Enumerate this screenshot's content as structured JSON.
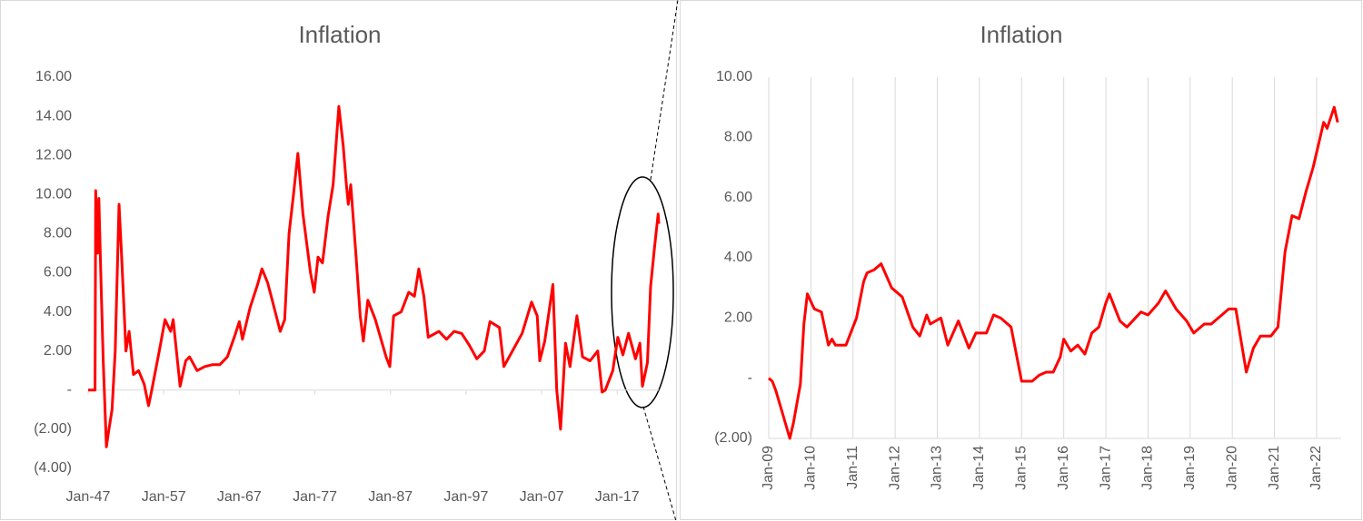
{
  "chart_data": [
    {
      "type": "line",
      "title": "Inflation",
      "x": [
        "1947-01",
        "1947-12",
        "1948-01",
        "1948-04",
        "1948-06",
        "1948-09",
        "1949-01",
        "1949-06",
        "1949-10",
        "1950-03",
        "1950-08",
        "1951-02",
        "1951-06",
        "1952-01",
        "1952-06",
        "1953-01",
        "1953-09",
        "1954-06",
        "1955-01",
        "1955-06",
        "1956-06",
        "1957-03",
        "1957-12",
        "1958-04",
        "1959-03",
        "1959-12",
        "1960-06",
        "1961-06",
        "1962-06",
        "1963-06",
        "1964-06",
        "1965-06",
        "1966-06",
        "1967-01",
        "1967-06",
        "1968-06",
        "1969-06",
        "1970-01",
        "1970-10",
        "1971-06",
        "1972-06",
        "1973-01",
        "1973-08",
        "1974-03",
        "1974-10",
        "1975-06",
        "1976-06",
        "1976-12",
        "1977-06",
        "1978-01",
        "1978-10",
        "1979-06",
        "1980-03",
        "1980-10",
        "1981-03",
        "1981-06",
        "1981-10",
        "1982-06",
        "1983-01",
        "1983-06",
        "1984-01",
        "1985-01",
        "1986-06",
        "1986-12",
        "1987-06",
        "1988-06",
        "1989-06",
        "1990-03",
        "1990-10",
        "1991-06",
        "1992-01",
        "1993-06",
        "1994-06",
        "1995-06",
        "1996-06",
        "1997-06",
        "1998-06",
        "1999-06",
        "2000-03",
        "2001-06",
        "2002-01",
        "2003-06",
        "2004-06",
        "2005-09",
        "2006-06",
        "2006-10",
        "2007-06",
        "2008-07",
        "2009-01",
        "2009-07",
        "2010-03",
        "2010-10",
        "2011-09",
        "2012-06",
        "2013-06",
        "2014-06",
        "2015-01",
        "2015-06",
        "2016-06",
        "2017-02",
        "2017-10",
        "2018-07",
        "2019-06",
        "2020-01",
        "2020-05",
        "2021-01",
        "2021-06",
        "2021-12",
        "2022-06",
        "2022-07"
      ],
      "series": [
        {
          "name": "Inflation",
          "color": "#ff0000",
          "values": [
            0,
            0,
            10.2,
            7,
            9.8,
            6,
            1.5,
            -2.9,
            -2,
            -1,
            2,
            9.5,
            7,
            2,
            3,
            0.8,
            1,
            0.3,
            -0.8,
            0,
            2,
            3.6,
            3,
            3.6,
            0.2,
            1.5,
            1.7,
            1,
            1.2,
            1.3,
            1.3,
            1.7,
            2.8,
            3.5,
            2.6,
            4.2,
            5.4,
            6.2,
            5.5,
            4.5,
            3,
            3.6,
            8,
            10,
            12.1,
            9,
            6,
            5,
            6.8,
            6.5,
            8.9,
            10.5,
            14.5,
            12.5,
            10.5,
            9.5,
            10.5,
            7,
            3.8,
            2.5,
            4.6,
            3.6,
            1.7,
            1.2,
            3.8,
            4,
            5,
            4.8,
            6.2,
            4.8,
            2.7,
            3,
            2.6,
            3,
            2.9,
            2.3,
            1.6,
            2,
            3.5,
            3.2,
            1.2,
            2.2,
            2.9,
            4.5,
            3.8,
            1.5,
            2.5,
            5.4,
            0,
            -2,
            2.4,
            1.2,
            3.8,
            1.7,
            1.5,
            2,
            -0.1,
            0,
            1,
            2.7,
            1.8,
            2.9,
            1.6,
            2.4,
            0.2,
            1.4,
            5.3,
            7.2,
            9,
            8.5
          ]
        }
      ],
      "xlim": [
        "1947-01",
        "2022-07"
      ],
      "xticks": [
        {
          "value": "1947-01",
          "label": "Jan-47"
        },
        {
          "value": "1957-01",
          "label": "Jan-57"
        },
        {
          "value": "1967-01",
          "label": "Jan-67"
        },
        {
          "value": "1977-01",
          "label": "Jan-77"
        },
        {
          "value": "1987-01",
          "label": "Jan-87"
        },
        {
          "value": "1997-01",
          "label": "Jan-97"
        },
        {
          "value": "2007-01",
          "label": "Jan-07"
        },
        {
          "value": "2017-01",
          "label": "Jan-17"
        }
      ],
      "ylim": [
        -4,
        16
      ],
      "yticks": [
        {
          "value": 16,
          "label": "16.00"
        },
        {
          "value": 14,
          "label": "14.00"
        },
        {
          "value": 12,
          "label": "12.00"
        },
        {
          "value": 10,
          "label": "10.00"
        },
        {
          "value": 8,
          "label": "8.00"
        },
        {
          "value": 6,
          "label": "6.00"
        },
        {
          "value": 4,
          "label": "4.00"
        },
        {
          "value": 2,
          "label": "2.00"
        },
        {
          "value": 0,
          "label": "-"
        },
        {
          "value": -2,
          "label": "(2.00)"
        },
        {
          "value": -4,
          "label": "(4.00)"
        }
      ],
      "grid": false
    },
    {
      "type": "line",
      "title": "Inflation",
      "x": [
        "2009-01",
        "2009-02",
        "2009-03",
        "2009-05",
        "2009-07",
        "2009-08",
        "2009-10",
        "2009-11",
        "2009-12",
        "2010-02",
        "2010-04",
        "2010-06",
        "2010-07",
        "2010-08",
        "2010-11",
        "2011-02",
        "2011-04",
        "2011-05",
        "2011-07",
        "2011-09",
        "2011-12",
        "2012-03",
        "2012-06",
        "2012-08",
        "2012-10",
        "2012-11",
        "2013-02",
        "2013-04",
        "2013-07",
        "2013-10",
        "2013-12",
        "2014-03",
        "2014-05",
        "2014-07",
        "2014-10",
        "2015-01",
        "2015-04",
        "2015-06",
        "2015-08",
        "2015-10",
        "2015-12",
        "2016-01",
        "2016-03",
        "2016-05",
        "2016-07",
        "2016-09",
        "2016-11",
        "2017-01",
        "2017-02",
        "2017-05",
        "2017-07",
        "2017-11",
        "2018-01",
        "2018-04",
        "2018-06",
        "2018-09",
        "2018-12",
        "2019-02",
        "2019-05",
        "2019-07",
        "2019-12",
        "2020-02",
        "2020-05",
        "2020-07",
        "2020-09",
        "2020-12",
        "2021-02",
        "2021-04",
        "2021-06",
        "2021-08",
        "2021-10",
        "2021-12",
        "2022-03",
        "2022-04",
        "2022-06",
        "2022-07"
      ],
      "series": [
        {
          "name": "Inflation",
          "color": "#ff0000",
          "values": [
            0,
            -0.1,
            -0.4,
            -1.2,
            -2,
            -1.5,
            -0.2,
            1.8,
            2.8,
            2.3,
            2.2,
            1.1,
            1.3,
            1.1,
            1.1,
            2,
            3.2,
            3.5,
            3.6,
            3.8,
            3,
            2.7,
            1.7,
            1.4,
            2.1,
            1.8,
            2,
            1.1,
            1.9,
            1,
            1.5,
            1.5,
            2.1,
            2,
            1.7,
            -0.1,
            -0.1,
            0.1,
            0.2,
            0.2,
            0.7,
            1.3,
            0.9,
            1.1,
            0.8,
            1.5,
            1.7,
            2.5,
            2.8,
            1.9,
            1.7,
            2.2,
            2.1,
            2.5,
            2.9,
            2.3,
            1.9,
            1.5,
            1.8,
            1.8,
            2.3,
            2.3,
            0.2,
            1,
            1.4,
            1.4,
            1.7,
            4.2,
            5.4,
            5.3,
            6.2,
            7,
            8.5,
            8.3,
            9,
            8.5
          ]
        }
      ],
      "xlim": [
        "2009-01",
        "2022-08"
      ],
      "xticks": [
        {
          "value": "2009-01",
          "label": "Jan-09"
        },
        {
          "value": "2010-01",
          "label": "Jan-10"
        },
        {
          "value": "2011-01",
          "label": "Jan-11"
        },
        {
          "value": "2012-01",
          "label": "Jan-12"
        },
        {
          "value": "2013-01",
          "label": "Jan-13"
        },
        {
          "value": "2014-01",
          "label": "Jan-14"
        },
        {
          "value": "2015-01",
          "label": "Jan-15"
        },
        {
          "value": "2016-01",
          "label": "Jan-16"
        },
        {
          "value": "2017-01",
          "label": "Jan-17"
        },
        {
          "value": "2018-01",
          "label": "Jan-18"
        },
        {
          "value": "2019-01",
          "label": "Jan-19"
        },
        {
          "value": "2020-01",
          "label": "Jan-20"
        },
        {
          "value": "2021-01",
          "label": "Jan-21"
        },
        {
          "value": "2022-01",
          "label": "Jan-22"
        }
      ],
      "ylim": [
        -2,
        10
      ],
      "yticks": [
        {
          "value": 10,
          "label": "10.00"
        },
        {
          "value": 8,
          "label": "8.00"
        },
        {
          "value": 6,
          "label": "6.00"
        },
        {
          "value": 4,
          "label": "4.00"
        },
        {
          "value": 2,
          "label": "2.00"
        },
        {
          "value": 0,
          "label": "-"
        },
        {
          "value": -2,
          "label": "(2.00)"
        }
      ],
      "grid": true
    }
  ]
}
